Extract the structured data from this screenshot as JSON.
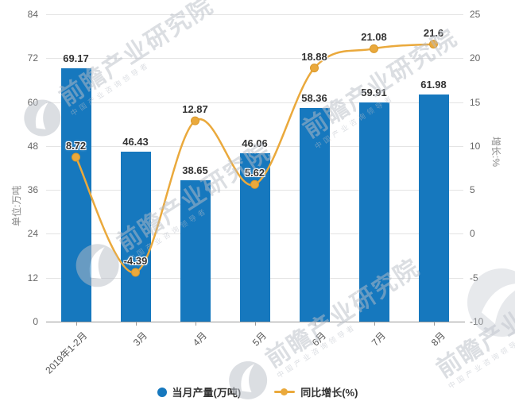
{
  "watermark": {
    "brand": "前瞻产业研究院",
    "tagline": "中国产业咨询领导者"
  },
  "chart_data": {
    "type": "bar",
    "subtype": "bar+line combo",
    "categories": [
      "2019年1-2月",
      "3月",
      "4月",
      "5月",
      "6月",
      "7月",
      "8月"
    ],
    "series": [
      {
        "name": "当月产量(万吨)",
        "type": "bar",
        "axis": "left",
        "color": "#1678be",
        "values": [
          69.17,
          46.43,
          38.65,
          46.06,
          58.36,
          59.91,
          61.98
        ],
        "labels": [
          "69.17",
          "46.43",
          "38.65",
          "46.06",
          "58.36",
          "59.91",
          "61.98"
        ]
      },
      {
        "name": "同比增长(%)",
        "type": "line",
        "axis": "right",
        "color": "#eaa93c",
        "values": [
          8.72,
          -4.39,
          12.87,
          5.62,
          18.88,
          21.08,
          21.6
        ],
        "labels": [
          "8.72",
          "-4.39",
          "12.87",
          "5.62",
          "18.88",
          "21.08",
          "21.6"
        ]
      }
    ],
    "left_axis": {
      "name": "单位:万吨",
      "min": 0,
      "max": 84,
      "ticks": [
        0,
        12,
        24,
        36,
        48,
        60,
        72,
        84
      ]
    },
    "right_axis": {
      "name": "增长:%",
      "min": -10,
      "max": 25,
      "ticks": [
        -10,
        -5,
        0,
        5,
        10,
        15,
        20,
        25
      ]
    },
    "grid": true,
    "legend_position": "bottom",
    "title": ""
  },
  "legend": {
    "items": [
      {
        "label": "当月产量(万吨)",
        "marker": "circle",
        "color": "#1678be"
      },
      {
        "label": "同比增长(%)",
        "marker": "line-dot",
        "color": "#eaa93c"
      }
    ]
  }
}
